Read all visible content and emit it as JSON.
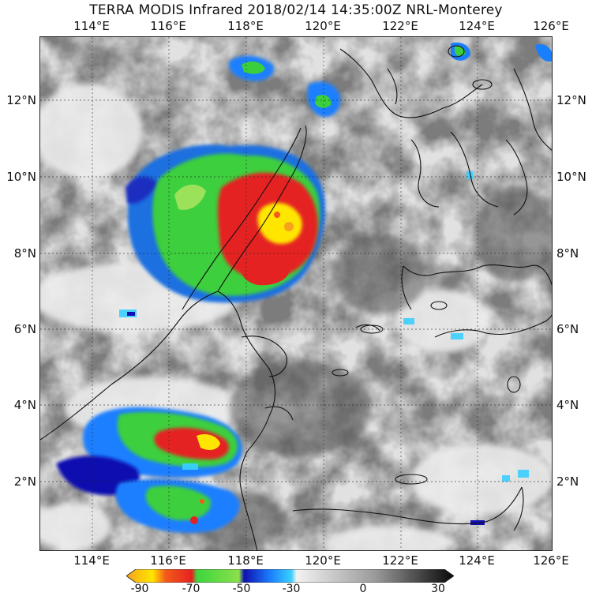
{
  "title": "TERRA MODIS Infrared 2018/02/14 14:35:00Z NRL-Monterey",
  "map": {
    "lon_labels": [
      "114°E",
      "116°E",
      "118°E",
      "120°E",
      "122°E",
      "124°E",
      "126°E"
    ],
    "lat_labels": [
      "12°N",
      "10°N",
      "8°N",
      "6°N",
      "4°N",
      "2°N"
    ],
    "extent": {
      "lon_min": 112.8,
      "lon_max": 126.1,
      "lat_min": 0.2,
      "lat_max": 13.6
    }
  },
  "colorbar": {
    "tick_labels": [
      "-90",
      "-70",
      "-50",
      "-30",
      "0",
      "30"
    ],
    "range": [
      -95,
      30
    ],
    "stops": [
      {
        "value": -95,
        "color": "#f7a21b"
      },
      {
        "value": -85,
        "color": "#ffe600"
      },
      {
        "value": -80,
        "color": "#f45a1a"
      },
      {
        "value": -70,
        "color": "#e52222"
      },
      {
        "value": -68,
        "color": "#3ed63e"
      },
      {
        "value": -52,
        "color": "#8be04b"
      },
      {
        "value": -50,
        "color": "#1010b0"
      },
      {
        "value": -40,
        "color": "#1a7fff"
      },
      {
        "value": -32,
        "color": "#3bd0ff"
      },
      {
        "value": -30,
        "color": "#f2f2f2"
      },
      {
        "value": 0,
        "color": "#9a9a9a"
      },
      {
        "value": 30,
        "color": "#080808"
      }
    ]
  }
}
